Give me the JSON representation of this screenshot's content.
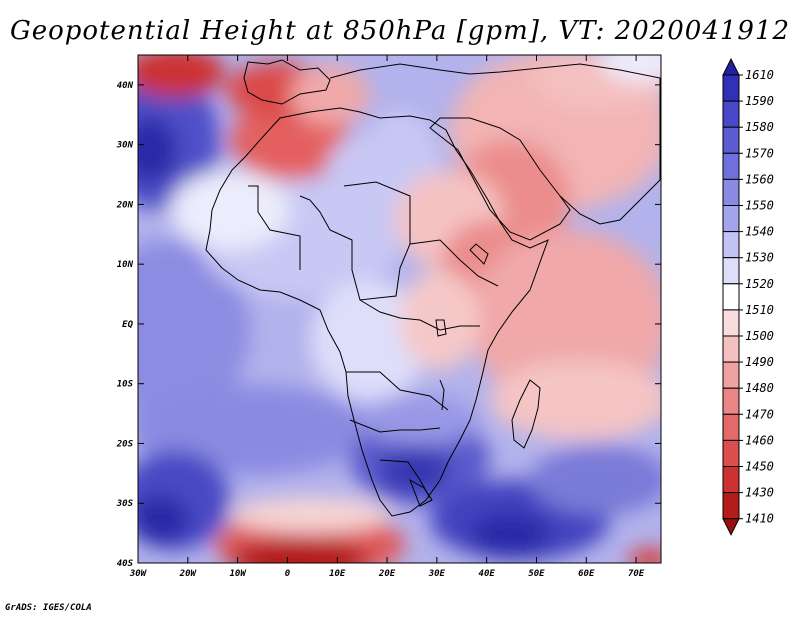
{
  "title": "Geopotential Height at 850hPa [gpm], VT: 2020041912",
  "credit": "GrADS: IGES/COLA",
  "map": {
    "lon_range": [
      -30,
      75
    ],
    "lat_range": [
      -40,
      45
    ],
    "lon_ticks": [
      "30W",
      "20W",
      "10W",
      "0",
      "10E",
      "20E",
      "30E",
      "40E",
      "50E",
      "60E",
      "70E"
    ],
    "lat_ticks": [
      "40N",
      "30N",
      "20N",
      "10N",
      "EQ",
      "10S",
      "20S",
      "30S",
      "40S"
    ]
  },
  "colorbar": {
    "labels": [
      "1610",
      "1590",
      "1580",
      "1570",
      "1560",
      "1550",
      "1540",
      "1530",
      "1520",
      "1510",
      "1500",
      "1490",
      "1480",
      "1470",
      "1460",
      "1450",
      "1430",
      "1410"
    ],
    "colors": [
      "#2020a0",
      "#3030b8",
      "#4848c8",
      "#5c5cd2",
      "#7070dc",
      "#8a8ae4",
      "#a4a4ec",
      "#c2c2f4",
      "#dedefa",
      "#ffffff",
      "#fadcdc",
      "#f5c0c0",
      "#f0a2a2",
      "#eb8686",
      "#e46a6a",
      "#dc4e4e",
      "#cc3232",
      "#b41c1c",
      "#9a1010"
    ]
  },
  "chart_data": {
    "type": "heatmap",
    "title": "Geopotential Height at 850hPa [gpm], VT: 2020041912",
    "variable": "Geopotential Height at 850hPa",
    "units": "gpm",
    "valid_time": "2020041912",
    "x_axis": {
      "label": "longitude",
      "range": [
        -30,
        75
      ],
      "ticks": [
        "30W",
        "20W",
        "10W",
        "0",
        "10E",
        "20E",
        "30E",
        "40E",
        "50E",
        "60E",
        "70E"
      ]
    },
    "y_axis": {
      "label": "latitude",
      "range": [
        -40,
        45
      ],
      "ticks": [
        "40N",
        "30N",
        "20N",
        "10N",
        "EQ",
        "10S",
        "20S",
        "30S",
        "40S"
      ]
    },
    "levels": [
      1410,
      1430,
      1450,
      1460,
      1470,
      1480,
      1490,
      1500,
      1510,
      1520,
      1530,
      1540,
      1550,
      1560,
      1570,
      1580,
      1590,
      1610
    ]
  }
}
